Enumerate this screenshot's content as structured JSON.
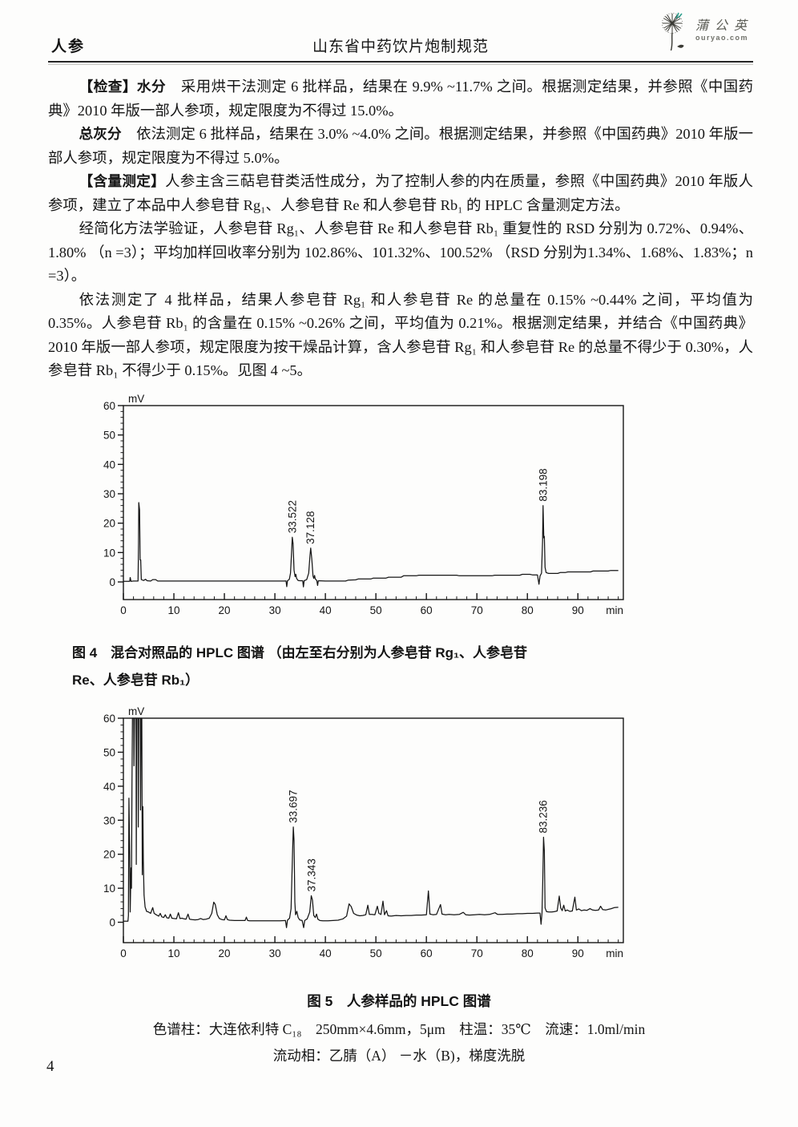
{
  "header": {
    "left": "人参",
    "center": "山东省中药饮片炮制规范",
    "logo_text": "蒲公英",
    "logo_domain": "ouryao.com"
  },
  "paragraphs": [
    {
      "label": "【检查】水分",
      "text": "　采用烘干法测定 6 批样品，结果在 9.9% ~11.7% 之间。根据测定结果，并参照《中国药典》2010 年版一部人参项，规定限度为不得过 15.0%。"
    },
    {
      "label": "总灰分",
      "text": "　依法测定 6 批样品，结果在 3.0% ~4.0% 之间。根据测定结果，并参照《中国药典》2010 年版一部人参项，规定限度为不得过 5.0%。"
    },
    {
      "label": "【含量测定】",
      "text": "人参主含三萜皂苷类活性成分，为了控制人参的内在质量，参照《中国药典》2010 年版人参项，建立了本品中人参皂苷 Rg₁、人参皂苷 Re 和人参皂苷 Rb₁ 的 HPLC 含量测定方法。"
    },
    {
      "label": "",
      "text": "经简化方法学验证，人参皂苷 Rg₁、人参皂苷 Re 和人参皂苷 Rb₁ 重复性的 RSD 分别为 0.72%、0.94%、1.80% （n =3）；平均加样回收率分别为 102.86%、101.32%、100.52% （RSD 分别为1.34%、1.68%、1.83%；n =3）。"
    },
    {
      "label": "",
      "text": "依法测定了 4 批样品，结果人参皂苷 Rg₁ 和人参皂苷 Re 的总量在 0.15% ~0.44% 之间，平均值为 0.35%。人参皂苷 Rb₁ 的含量在 0.15% ~0.26% 之间，平均值为 0.21%。根据测定结果，并结合《中国药典》2010 年版一部人参项，规定限度为按干燥品计算，含人参皂苷 Rg₁ 和人参皂苷 Re 的总量不得少于 0.30%，人参皂苷 Rb₁ 不得少于 0.15%。见图 4 ~5。"
    }
  ],
  "figures": {
    "fig4": {
      "caption_line1": "图 4　混合对照品的 HPLC 图谱 （由左至右分别为人参皂苷 Rg₁、人参皂苷",
      "caption_line2": "Re、人参皂苷 Rb₁）"
    },
    "fig5": {
      "title": "图 5　人参样品的 HPLC 图谱",
      "condition1": "色谱柱：大连依利特 C₁₈　250mm×4.6mm，5μm　柱温：35℃　流速：1.0ml/min",
      "condition2": "流动相：乙腈（A） －水（B)，梯度洗脱"
    }
  },
  "page_number": "4",
  "colors": {
    "ink": "#161616",
    "logo_accent": "#2fa08f",
    "logo_gray": "#565650"
  },
  "chart_data": [
    {
      "type": "line",
      "name": "figure-4-hplc-reference-chromatogram",
      "title": "混合对照品的 HPLC 图谱",
      "ylabel": "mV",
      "xlabel": "min",
      "xlim": [
        0,
        99
      ],
      "ylim": [
        -6,
        60
      ],
      "xticks": [
        0,
        10,
        20,
        30,
        40,
        50,
        60,
        70,
        80,
        90
      ],
      "yticks": [
        0,
        10,
        20,
        30,
        40,
        50,
        60
      ],
      "grid": false,
      "color": "#161616",
      "peaks": [
        {
          "x": 33.522,
          "y": 15.2,
          "label": "33.522"
        },
        {
          "x": 37.128,
          "y": 11.5,
          "label": "37.128"
        },
        {
          "x": 83.198,
          "y": 26.0,
          "label": "83.198"
        }
      ],
      "trace": [
        [
          0,
          0.2
        ],
        [
          1.25,
          0.2
        ],
        [
          1.35,
          1.5
        ],
        [
          1.5,
          0.2
        ],
        [
          2.0,
          0.3
        ],
        [
          2.9,
          0.3
        ],
        [
          3.0,
          13
        ],
        [
          3.05,
          27
        ],
        [
          3.2,
          24.5
        ],
        [
          3.32,
          7.5
        ],
        [
          3.42,
          7.5
        ],
        [
          3.55,
          0.8
        ],
        [
          4.0,
          0.5
        ],
        [
          4.4,
          0.9
        ],
        [
          4.7,
          0.4
        ],
        [
          5.4,
          0.3
        ],
        [
          5.8,
          0.8
        ],
        [
          6.4,
          0.8
        ],
        [
          6.8,
          0.3
        ],
        [
          10,
          0.3
        ],
        [
          20,
          0.3
        ],
        [
          30,
          0.3
        ],
        [
          31.8,
          0.3
        ],
        [
          32.2,
          0.35
        ],
        [
          32.35,
          -1.6
        ],
        [
          32.5,
          0.4
        ],
        [
          32.85,
          0.9
        ],
        [
          33.1,
          3
        ],
        [
          33.3,
          10
        ],
        [
          33.45,
          15.2
        ],
        [
          33.6,
          13
        ],
        [
          33.8,
          4
        ],
        [
          34.0,
          1.8
        ],
        [
          34.15,
          2.6
        ],
        [
          34.3,
          1.2
        ],
        [
          34.6,
          0.5
        ],
        [
          35.0,
          0.4
        ],
        [
          35.5,
          0.4
        ],
        [
          35.65,
          -1.7
        ],
        [
          35.8,
          0.4
        ],
        [
          36.3,
          0.8
        ],
        [
          36.7,
          3
        ],
        [
          36.95,
          9
        ],
        [
          37.1,
          11.5
        ],
        [
          37.3,
          8
        ],
        [
          37.55,
          2
        ],
        [
          37.7,
          1.2
        ],
        [
          37.85,
          2.2
        ],
        [
          38.0,
          1.0
        ],
        [
          38.3,
          0.5
        ],
        [
          38.45,
          -1.2
        ],
        [
          38.6,
          0.4
        ],
        [
          40,
          0.3
        ],
        [
          44,
          0.3
        ],
        [
          44.5,
          0.6
        ],
        [
          46,
          0.7
        ],
        [
          46.5,
          1.0
        ],
        [
          49,
          1.0
        ],
        [
          49.5,
          1.3
        ],
        [
          52,
          1.3
        ],
        [
          52.5,
          1.6
        ],
        [
          55,
          1.6
        ],
        [
          55.5,
          2.1
        ],
        [
          58,
          2.1
        ],
        [
          58.5,
          2.3
        ],
        [
          66,
          2.3
        ],
        [
          66.5,
          2.1
        ],
        [
          73,
          2.1
        ],
        [
          73.5,
          2.3
        ],
        [
          78.5,
          2.3
        ],
        [
          79,
          2.6
        ],
        [
          80.5,
          2.6
        ],
        [
          81,
          2.4
        ],
        [
          82.0,
          2.4
        ],
        [
          82.3,
          -0.8
        ],
        [
          82.5,
          2.0
        ],
        [
          82.8,
          3.0
        ],
        [
          83.0,
          14
        ],
        [
          83.1,
          26
        ],
        [
          83.25,
          15
        ],
        [
          83.35,
          15.5
        ],
        [
          83.5,
          5
        ],
        [
          83.7,
          3.2
        ],
        [
          84.2,
          2.9
        ],
        [
          86,
          2.9
        ],
        [
          86.5,
          3.2
        ],
        [
          87.5,
          3.2
        ],
        [
          88,
          3.4
        ],
        [
          92.5,
          3.4
        ],
        [
          93,
          3.7
        ],
        [
          96,
          3.7
        ],
        [
          96.5,
          3.9
        ],
        [
          98,
          3.9
        ]
      ]
    },
    {
      "type": "line",
      "name": "figure-5-hplc-sample-chromatogram",
      "title": "人参样品的 HPLC 图谱",
      "ylabel": "mV",
      "xlabel": "min",
      "xlim": [
        0,
        99
      ],
      "ylim": [
        -6,
        60
      ],
      "xticks": [
        0,
        10,
        20,
        30,
        40,
        50,
        60,
        70,
        80,
        90
      ],
      "yticks": [
        0,
        10,
        20,
        30,
        40,
        50,
        60
      ],
      "grid": false,
      "color": "#161616",
      "peaks": [
        {
          "x": 33.697,
          "y": 28.0,
          "label": "33.697"
        },
        {
          "x": 37.343,
          "y": 7.8,
          "label": "37.343"
        },
        {
          "x": 83.236,
          "y": 25.0,
          "label": "83.236"
        }
      ],
      "trace": [
        [
          0,
          0.3
        ],
        [
          0.9,
          0.3
        ],
        [
          1.0,
          2
        ],
        [
          1.1,
          36.5
        ],
        [
          1.25,
          20
        ],
        [
          1.35,
          3
        ],
        [
          1.5,
          16
        ],
        [
          1.6,
          10
        ],
        [
          1.7,
          40
        ],
        [
          1.8,
          60
        ],
        [
          2.05,
          60
        ],
        [
          2.1,
          46
        ],
        [
          2.2,
          60
        ],
        [
          2.5,
          60
        ],
        [
          2.55,
          17
        ],
        [
          2.65,
          60
        ],
        [
          2.9,
          60
        ],
        [
          2.95,
          28
        ],
        [
          3.05,
          60
        ],
        [
          3.35,
          60
        ],
        [
          3.4,
          33
        ],
        [
          3.5,
          60
        ],
        [
          3.65,
          60
        ],
        [
          3.75,
          14
        ],
        [
          3.85,
          34
        ],
        [
          3.95,
          18
        ],
        [
          4.1,
          8
        ],
        [
          4.3,
          4.5
        ],
        [
          4.6,
          3.2
        ],
        [
          5.0,
          3.0
        ],
        [
          5.4,
          2.6
        ],
        [
          5.8,
          4.3
        ],
        [
          6.1,
          2.6
        ],
        [
          6.5,
          2.2
        ],
        [
          7.0,
          1.8
        ],
        [
          7.3,
          2.6
        ],
        [
          7.6,
          1.6
        ],
        [
          8.0,
          1.4
        ],
        [
          8.3,
          2.2
        ],
        [
          8.6,
          1.3
        ],
        [
          9.0,
          1.2
        ],
        [
          9.3,
          2.4
        ],
        [
          9.6,
          1.2
        ],
        [
          10.0,
          1.1
        ],
        [
          10.5,
          1.0
        ],
        [
          10.9,
          2.8
        ],
        [
          11.2,
          1.1
        ],
        [
          11.6,
          1.2
        ],
        [
          12.0,
          1.0
        ],
        [
          12.4,
          0.9
        ],
        [
          12.8,
          2.4
        ],
        [
          13.1,
          0.9
        ],
        [
          13.6,
          0.8
        ],
        [
          14.2,
          0.7
        ],
        [
          14.8,
          0.8
        ],
        [
          15.3,
          1.1
        ],
        [
          15.8,
          0.8
        ],
        [
          16.4,
          0.9
        ],
        [
          17.0,
          1.2
        ],
        [
          17.5,
          2.6
        ],
        [
          17.9,
          5.9
        ],
        [
          18.2,
          5.2
        ],
        [
          18.6,
          2.2
        ],
        [
          19.0,
          1.1
        ],
        [
          19.5,
          0.8
        ],
        [
          20.0,
          0.7
        ],
        [
          20.3,
          1.9
        ],
        [
          20.6,
          0.8
        ],
        [
          21.0,
          0.6
        ],
        [
          22.0,
          0.5
        ],
        [
          23.0,
          0.5
        ],
        [
          24.1,
          0.5
        ],
        [
          24.35,
          1.5
        ],
        [
          24.6,
          0.5
        ],
        [
          25,
          0.4
        ],
        [
          28,
          0.4
        ],
        [
          31,
          0.4
        ],
        [
          32.1,
          0.5
        ],
        [
          32.3,
          -1.6
        ],
        [
          32.5,
          0.6
        ],
        [
          32.9,
          1.2
        ],
        [
          33.2,
          4
        ],
        [
          33.5,
          21
        ],
        [
          33.65,
          28
        ],
        [
          33.8,
          24
        ],
        [
          33.95,
          6
        ],
        [
          34.1,
          2.2
        ],
        [
          34.35,
          3.2
        ],
        [
          34.6,
          1.4
        ],
        [
          34.9,
          0.7
        ],
        [
          35.4,
          0.5
        ],
        [
          35.7,
          -1.6
        ],
        [
          35.9,
          0.5
        ],
        [
          36.4,
          1.0
        ],
        [
          36.9,
          3
        ],
        [
          37.2,
          7.8
        ],
        [
          37.45,
          6.5
        ],
        [
          37.7,
          2
        ],
        [
          38.0,
          1.4
        ],
        [
          38.25,
          2.4
        ],
        [
          38.5,
          0.9
        ],
        [
          38.9,
          0.5
        ],
        [
          39.5,
          0.4
        ],
        [
          40.5,
          0.4
        ],
        [
          41.5,
          0.5
        ],
        [
          42.5,
          0.6
        ],
        [
          43.5,
          1.0
        ],
        [
          44.2,
          1.8
        ],
        [
          44.7,
          5.4
        ],
        [
          45.1,
          4.6
        ],
        [
          45.6,
          2.6
        ],
        [
          46.2,
          2.1
        ],
        [
          46.8,
          1.9
        ],
        [
          47.4,
          2.0
        ],
        [
          48.0,
          2.2
        ],
        [
          48.4,
          5.0
        ],
        [
          48.7,
          2.3
        ],
        [
          49.2,
          2.3
        ],
        [
          49.8,
          2.2
        ],
        [
          50.3,
          4.7
        ],
        [
          50.6,
          2.6
        ],
        [
          51.0,
          2.3
        ],
        [
          51.4,
          6.2
        ],
        [
          51.7,
          2.2
        ],
        [
          52.1,
          3.4
        ],
        [
          52.4,
          1.9
        ],
        [
          53.0,
          1.8
        ],
        [
          54.0,
          2.0
        ],
        [
          55.0,
          1.9
        ],
        [
          56.0,
          2.0
        ],
        [
          57.0,
          2.0
        ],
        [
          58.0,
          2.1
        ],
        [
          59.0,
          2.1
        ],
        [
          60.0,
          2.2
        ],
        [
          60.4,
          9.2
        ],
        [
          60.7,
          2.4
        ],
        [
          61.3,
          2.2
        ],
        [
          62.0,
          2.3
        ],
        [
          62.8,
          5.2
        ],
        [
          63.1,
          2.4
        ],
        [
          63.8,
          2.2
        ],
        [
          64.5,
          2.3
        ],
        [
          65.5,
          2.2
        ],
        [
          66.5,
          2.3
        ],
        [
          67.3,
          2.9
        ],
        [
          67.8,
          2.2
        ],
        [
          68.5,
          2.1
        ],
        [
          69.5,
          2.2
        ],
        [
          70.5,
          2.3
        ],
        [
          71.5,
          2.2
        ],
        [
          72.5,
          2.3
        ],
        [
          73.6,
          2.8
        ],
        [
          74.1,
          2.3
        ],
        [
          75.0,
          2.3
        ],
        [
          76.0,
          2.4
        ],
        [
          77.0,
          2.4
        ],
        [
          78.0,
          2.5
        ],
        [
          79.0,
          2.5
        ],
        [
          80.0,
          2.6
        ],
        [
          81.0,
          2.6
        ],
        [
          82.0,
          2.7
        ],
        [
          82.5,
          2.7
        ],
        [
          82.7,
          -0.6
        ],
        [
          82.9,
          2.8
        ],
        [
          83.05,
          13
        ],
        [
          83.2,
          25
        ],
        [
          83.35,
          21
        ],
        [
          83.5,
          4.2
        ],
        [
          83.8,
          3.1
        ],
        [
          84.3,
          3.0
        ],
        [
          84.8,
          3.0
        ],
        [
          85.3,
          3.1
        ],
        [
          85.9,
          3.3
        ],
        [
          86.3,
          7.7
        ],
        [
          86.6,
          4.2
        ],
        [
          86.9,
          3.4
        ],
        [
          87.2,
          5.0
        ],
        [
          87.5,
          3.3
        ],
        [
          87.9,
          3.6
        ],
        [
          88.4,
          3.2
        ],
        [
          88.9,
          3.3
        ],
        [
          89.4,
          7.4
        ],
        [
          89.7,
          3.6
        ],
        [
          90.2,
          3.9
        ],
        [
          90.7,
          3.4
        ],
        [
          91.2,
          3.6
        ],
        [
          91.8,
          3.5
        ],
        [
          92.4,
          4.0
        ],
        [
          92.9,
          3.6
        ],
        [
          93.5,
          3.5
        ],
        [
          94.1,
          3.6
        ],
        [
          94.5,
          4.7
        ],
        [
          94.9,
          3.7
        ],
        [
          95.5,
          3.6
        ],
        [
          96.1,
          3.8
        ],
        [
          96.6,
          4.0
        ],
        [
          97.2,
          4.3
        ],
        [
          98,
          4.4
        ]
      ]
    }
  ]
}
